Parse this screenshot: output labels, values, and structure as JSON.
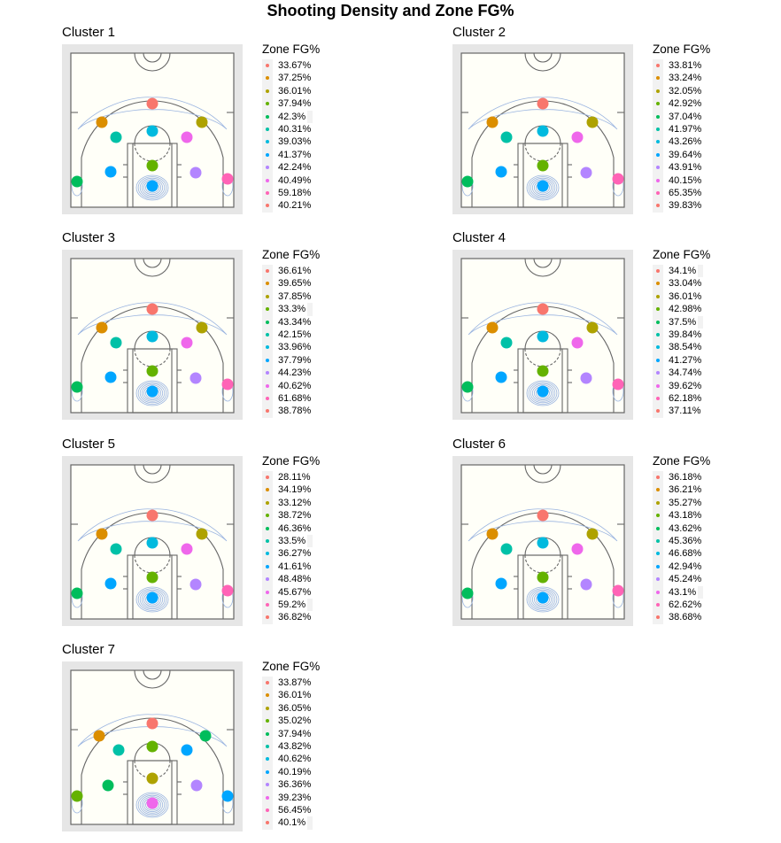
{
  "title": "Shooting Density and Zone FG%",
  "legend_title": "Zone FG%",
  "zone_colors": [
    "#f8766d",
    "#db8e00",
    "#aea200",
    "#64b200",
    "#00bd5c",
    "#00c1a7",
    "#00bade",
    "#00a6ff",
    "#b385ff",
    "#ef67eb",
    "#ff63b6",
    "#f8766d"
  ],
  "chart_data": [
    {
      "type": "scatter",
      "title": "Cluster 1",
      "zone_fg_pct": [
        "33.67%",
        "37.25%",
        "36.01%",
        "37.94%",
        "42.3%",
        "40.31%",
        "39.03%",
        "41.37%",
        "42.24%",
        "40.49%",
        "59.18%",
        "40.21%"
      ]
    },
    {
      "type": "scatter",
      "title": "Cluster 2",
      "zone_fg_pct": [
        "33.81%",
        "33.24%",
        "32.05%",
        "42.92%",
        "37.04%",
        "41.97%",
        "43.26%",
        "39.64%",
        "43.91%",
        "40.15%",
        "65.35%",
        "39.83%"
      ]
    },
    {
      "type": "scatter",
      "title": "Cluster 3",
      "zone_fg_pct": [
        "36.61%",
        "39.65%",
        "37.85%",
        "33.3%",
        "43.34%",
        "42.15%",
        "33.96%",
        "37.79%",
        "44.23%",
        "40.62%",
        "61.68%",
        "38.78%"
      ]
    },
    {
      "type": "scatter",
      "title": "Cluster 4",
      "zone_fg_pct": [
        "34.1%",
        "33.04%",
        "36.01%",
        "42.98%",
        "37.5%",
        "39.84%",
        "38.54%",
        "41.27%",
        "34.74%",
        "39.62%",
        "62.18%",
        "37.11%"
      ]
    },
    {
      "type": "scatter",
      "title": "Cluster 5",
      "zone_fg_pct": [
        "28.11%",
        "34.19%",
        "33.12%",
        "38.72%",
        "46.36%",
        "33.5%",
        "36.27%",
        "41.61%",
        "48.48%",
        "45.67%",
        "59.2%",
        "36.82%"
      ]
    },
    {
      "type": "scatter",
      "title": "Cluster 6",
      "zone_fg_pct": [
        "36.18%",
        "36.21%",
        "35.27%",
        "43.18%",
        "43.62%",
        "45.36%",
        "46.68%",
        "42.94%",
        "45.24%",
        "43.1%",
        "62.62%",
        "38.68%"
      ]
    },
    {
      "type": "scatter",
      "title": "Cluster 7",
      "zone_fg_pct": [
        "33.87%",
        "36.01%",
        "36.05%",
        "35.02%",
        "37.94%",
        "43.82%",
        "40.62%",
        "40.19%",
        "36.36%",
        "39.23%",
        "56.45%",
        "40.1%"
      ]
    }
  ]
}
